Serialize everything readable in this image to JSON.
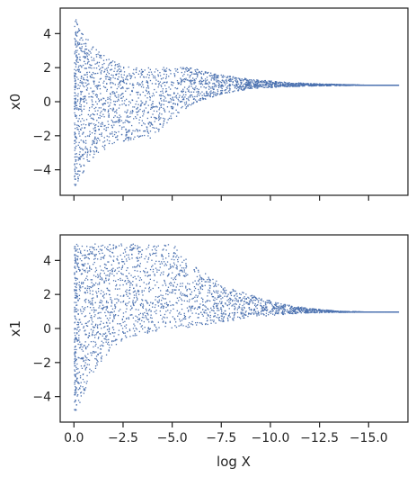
{
  "chart_data": [
    {
      "type": "scatter",
      "panel": "top",
      "ylabel": "x0",
      "xlabel": "",
      "x_ticks": [
        0,
        -2.5,
        -5,
        -7.5,
        -10,
        -12.5,
        -15
      ],
      "x_tick_labels_visible": false,
      "y_ticks": [
        4,
        2,
        0,
        -2,
        -4
      ],
      "y_tick_labels": [
        "4",
        "2",
        "0",
        "−2",
        "−4"
      ],
      "xlim": [
        0.7,
        -17.0
      ],
      "ylim": [
        -5.5,
        5.5
      ],
      "x_axis_inverted": true,
      "grid": false,
      "marker_color": "#4c72b0",
      "description_points": {
        "x": [
          0.0,
          -0.5,
          -1.0,
          -2.0,
          -3.0,
          -4.0,
          -5.0,
          -6.0,
          -7.5,
          -9.0,
          -10.5,
          -12.0,
          -13.5,
          -15.0,
          -16.5
        ],
        "y_upper": [
          5.0,
          4.0,
          3.2,
          2.4,
          2.1,
          2.0,
          2.1,
          2.0,
          1.6,
          1.35,
          1.2,
          1.1,
          1.05,
          1.0,
          1.0
        ],
        "y_lower": [
          -5.0,
          -4.0,
          -3.2,
          -2.4,
          -2.2,
          -2.1,
          -1.0,
          -0.1,
          0.5,
          0.8,
          0.9,
          0.95,
          0.98,
          1.0,
          1.0
        ]
      }
    },
    {
      "type": "scatter",
      "panel": "bottom",
      "ylabel": "x1",
      "xlabel": "log X",
      "x_ticks": [
        0,
        -2.5,
        -5,
        -7.5,
        -10,
        -12.5,
        -15
      ],
      "x_tick_labels": [
        "0.0",
        "−2.5",
        "−5.0",
        "−7.5",
        "−10.0",
        "−12.5",
        "−15.0"
      ],
      "y_ticks": [
        4,
        2,
        0,
        -2,
        -4
      ],
      "y_tick_labels": [
        "4",
        "2",
        "0",
        "−2",
        "−4"
      ],
      "xlim": [
        0.7,
        -17.0
      ],
      "ylim": [
        -5.5,
        5.5
      ],
      "x_axis_inverted": true,
      "grid": false,
      "marker_color": "#4c72b0",
      "description_points": {
        "x": [
          0.0,
          -1.0,
          -2.0,
          -3.0,
          -4.0,
          -5.0,
          -6.0,
          -7.5,
          -9.0,
          -10.5,
          -12.0,
          -13.5,
          -15.0,
          -16.5
        ],
        "y_upper": [
          5.0,
          5.0,
          5.0,
          5.0,
          5.0,
          5.0,
          3.8,
          2.6,
          2.0,
          1.5,
          1.2,
          1.05,
          1.0,
          1.0
        ],
        "y_lower": [
          -5.0,
          -2.5,
          -1.0,
          -0.4,
          -0.2,
          0.0,
          0.1,
          0.4,
          0.7,
          0.85,
          0.95,
          0.98,
          1.0,
          1.0
        ]
      }
    }
  ]
}
